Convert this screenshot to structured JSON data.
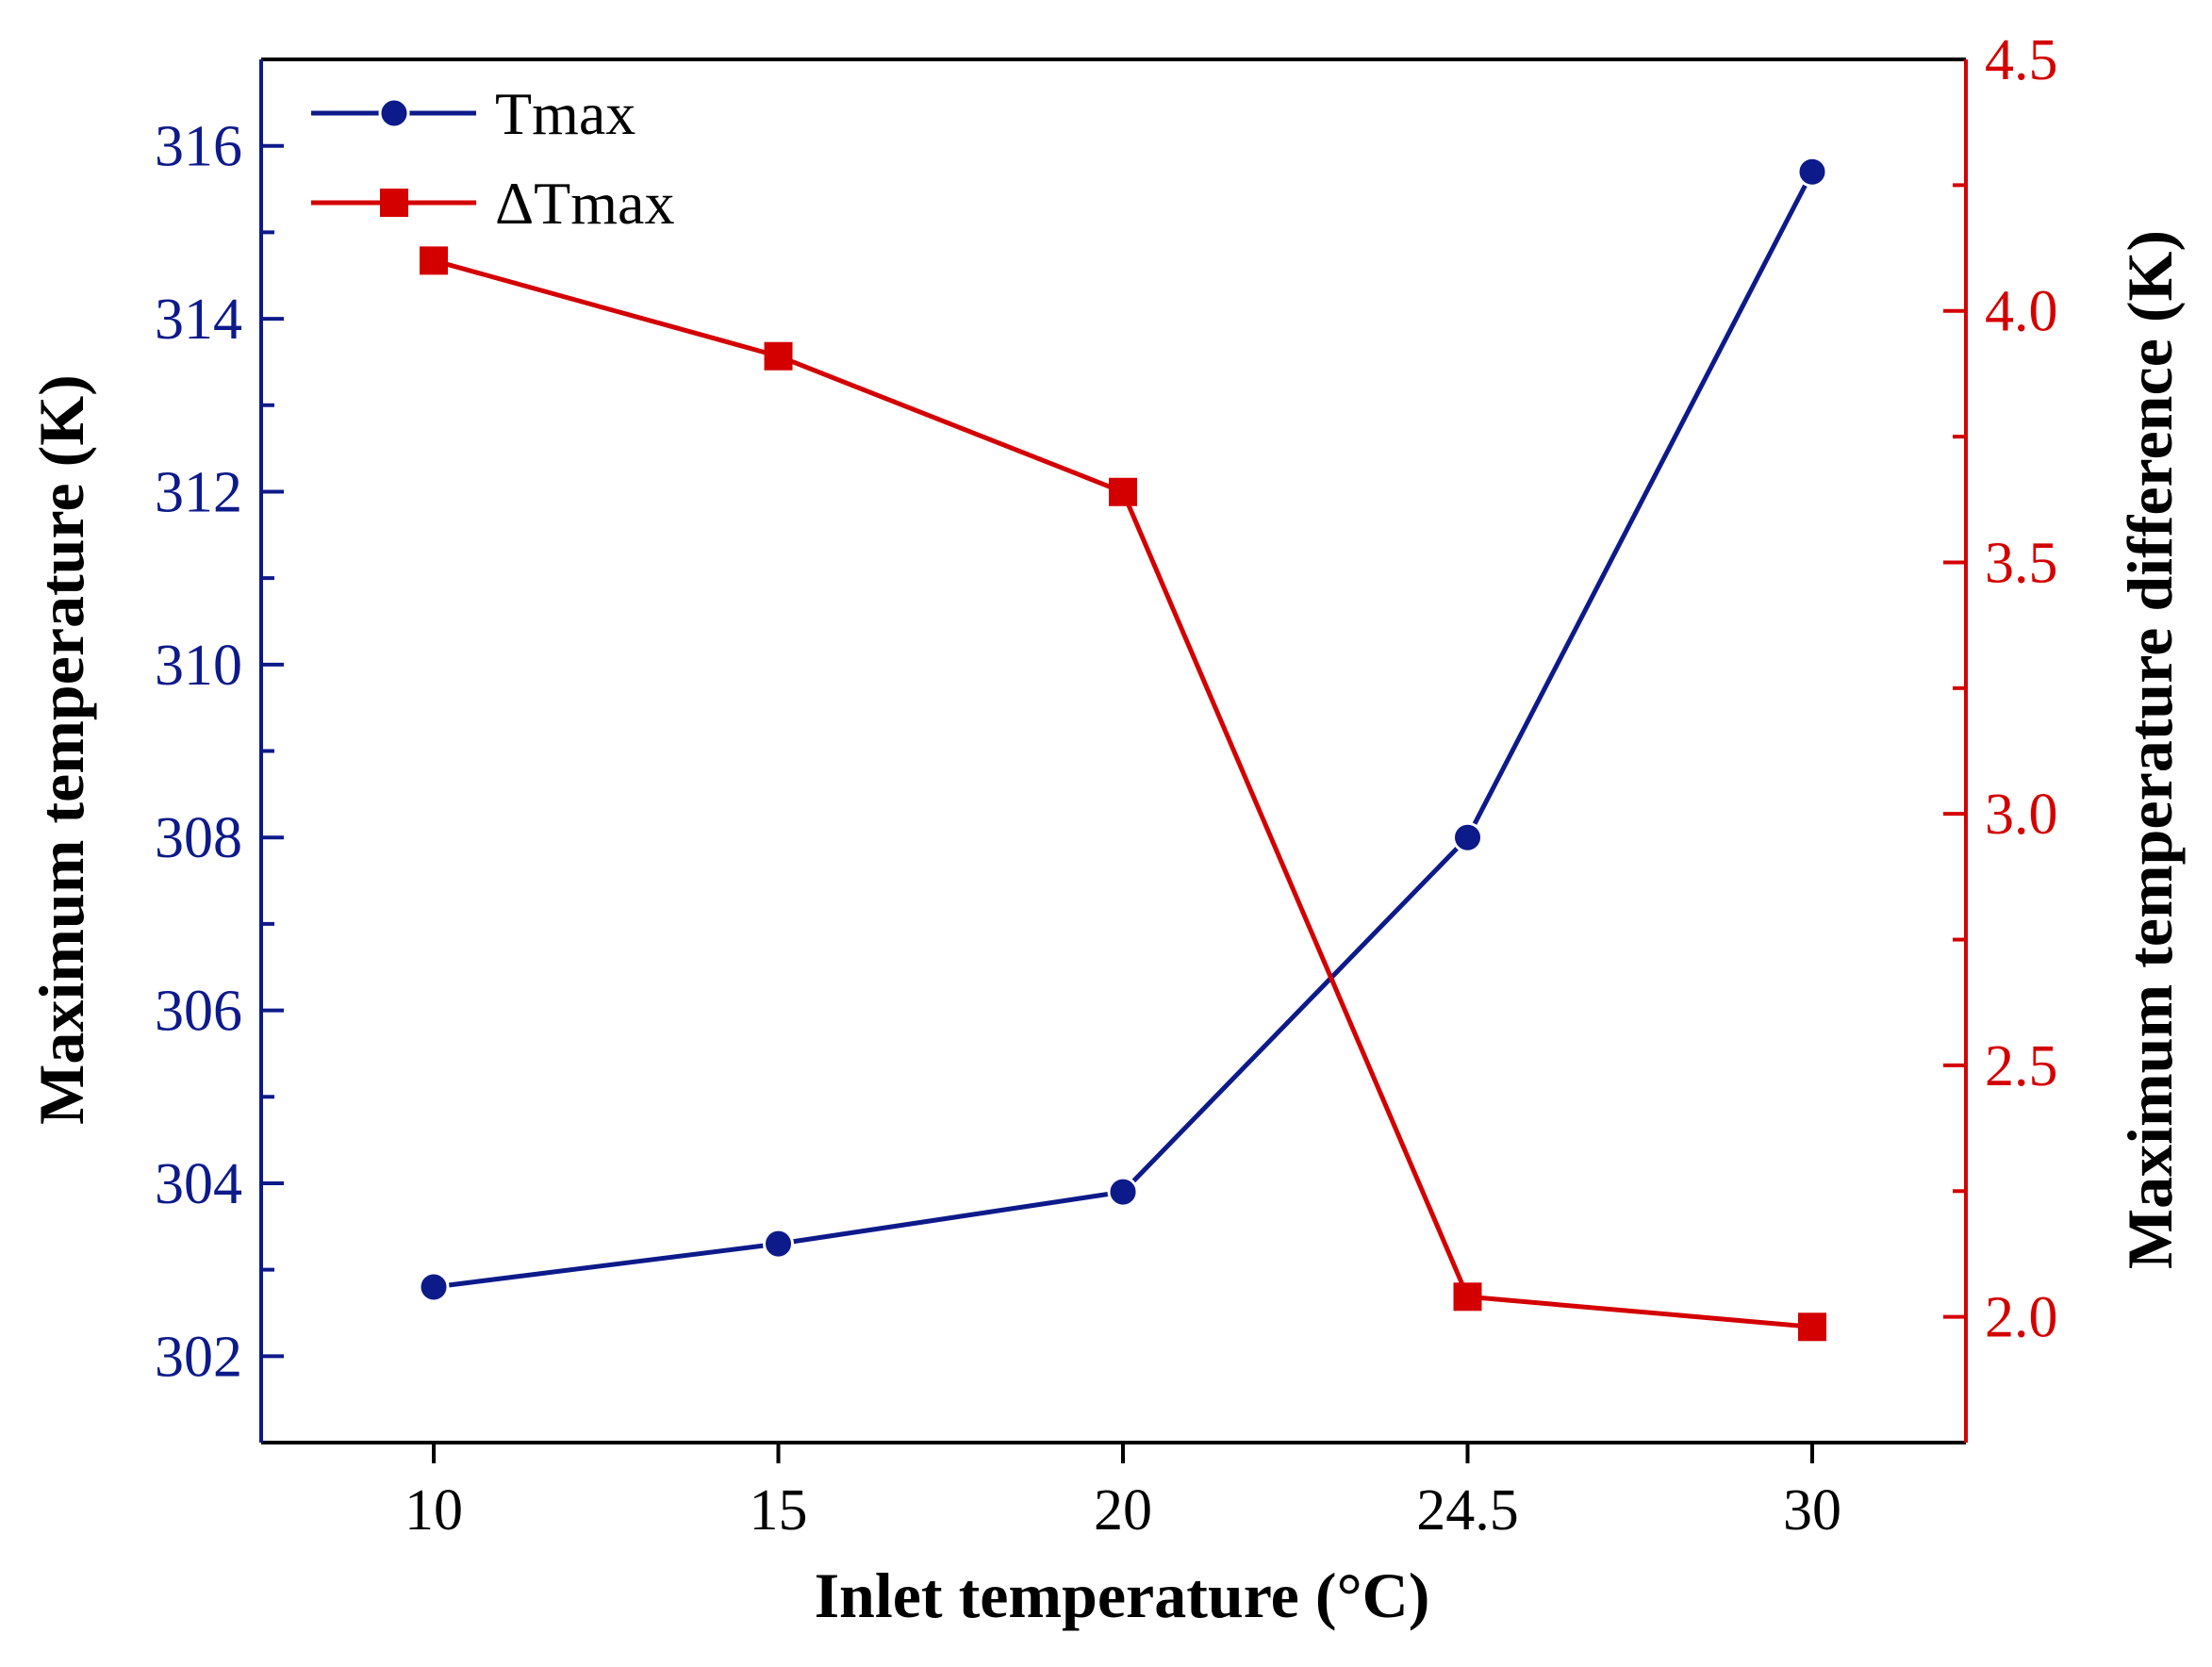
{
  "chart_data": {
    "type": "line",
    "xlabel": "Inlet temperature (°C)",
    "categories": [
      "10",
      "15",
      "20",
      "24.5",
      "30"
    ],
    "y_left": {
      "label": "Maximum temperature (K)",
      "range": [
        301,
        317
      ],
      "major_ticks": [
        302,
        304,
        306,
        308,
        310,
        312,
        314,
        316
      ],
      "color": "#0d1a8a"
    },
    "y_right": {
      "label": "Maximum temperature difference (K)",
      "range": [
        1.75,
        4.5
      ],
      "major_ticks": [
        "2.0",
        "2.5",
        "3.0",
        "3.5",
        "4.0",
        "4.5"
      ],
      "color": "#d40000"
    },
    "series": [
      {
        "name": "Tmax",
        "axis": "left",
        "marker": "circle",
        "color": "#0d1a8a",
        "values": [
          302.8,
          303.3,
          303.9,
          308.0,
          315.7
        ]
      },
      {
        "name": "ΔTmax",
        "axis": "right",
        "marker": "square",
        "color": "#d40000",
        "values": [
          4.1,
          3.91,
          3.64,
          2.04,
          1.98
        ]
      }
    ],
    "legend_position": "top-left",
    "grid": false
  }
}
